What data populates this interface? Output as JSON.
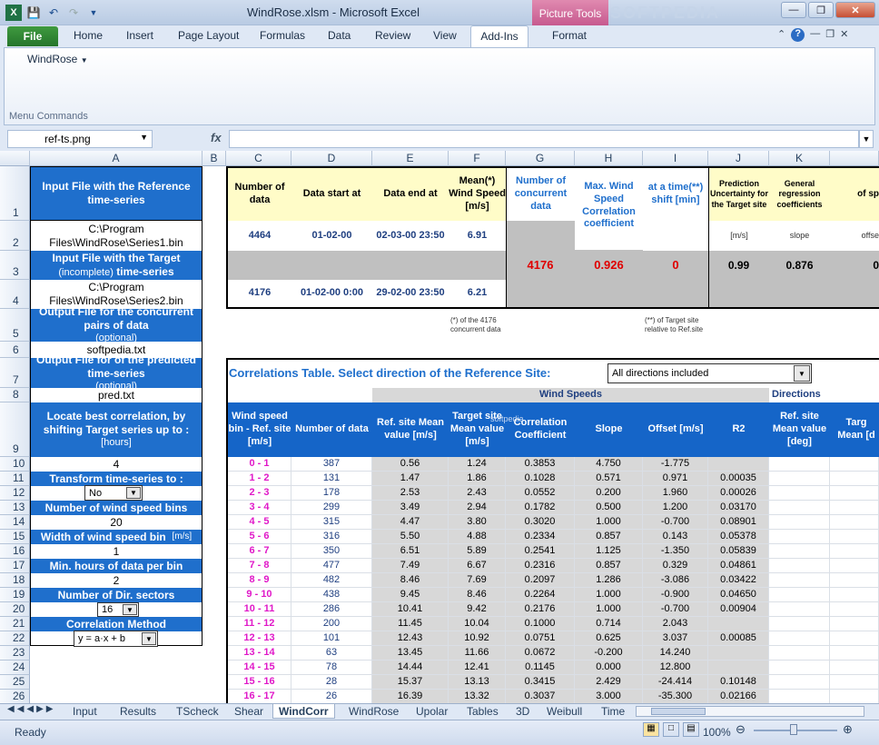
{
  "window": {
    "title": "WindRose.xlsm  -  Microsoft Excel",
    "context_tab": "Picture Tools",
    "watermark": "SOFTPEDIA"
  },
  "ribbon": {
    "file": "File",
    "tabs": [
      "Home",
      "Insert",
      "Page Layout",
      "Formulas",
      "Data",
      "Review",
      "View"
    ],
    "active_tab": "Add-Ins",
    "context_format": "Format",
    "menu_item": "WindRose",
    "group_label": "Menu Commands"
  },
  "formula_bar": {
    "name_box": "ref-ts.png",
    "fx": "fx",
    "content": ""
  },
  "columns": [
    "A",
    "B",
    "C",
    "D",
    "E",
    "F",
    "G",
    "H",
    "I",
    "J",
    "K"
  ],
  "rows": [
    "1",
    "2",
    "3",
    "4",
    "5",
    "6",
    "7",
    "8",
    "9",
    "10",
    "11",
    "12",
    "13",
    "14",
    "15",
    "16",
    "17",
    "18",
    "19",
    "20",
    "21",
    "22",
    "23",
    "24",
    "25",
    "26"
  ],
  "left_panel": {
    "ref_file_label": "Input File with the Reference time-series",
    "ref_file_value": "C:\\Program Files\\WindRose\\Series1.bin",
    "target_label_1": "Input File with the Target",
    "target_label_2": "(incomplete)",
    "target_label_3": "time-series",
    "target_value": "C:\\Program Files\\WindRose\\Series2.bin",
    "output_conc_label": "Output File for the concurrent pairs of data",
    "output_conc_opt": "(optional)",
    "output_conc_value": "softpedia.txt",
    "output_pred_label": "Output File for of the predicted time-series",
    "output_pred_opt": "(optional)",
    "output_pred_value": "pred.txt",
    "locate_label": "Locate best correlation, by shifting Target series up to :",
    "locate_unit": "[hours]",
    "locate_value": "4",
    "transform_label": "Transform time-series to :",
    "transform_value": "No",
    "nbins_label": "Number of wind speed bins",
    "nbins_value": "20",
    "width_label": "Width of wind speed bin",
    "width_unit": "[m/s]",
    "width_value": "1",
    "minhours_label": "Min. hours of data per bin",
    "minhours_value": "2",
    "ndir_label": "Number of Dir. sectors",
    "ndir_value": "16",
    "method_label": "Correlation Method",
    "method_value": "y = a·x + b"
  },
  "summary": {
    "h_ndata": "Number of data",
    "h_start": "Data start at",
    "h_end": "Data end at",
    "h_mean": "Mean(*) Wind Speed [m/s]",
    "h_conc": "Number of concurrent data",
    "h_maxcorr": "Max. Wind Speed Correlation coefficient",
    "h_shift": "at a time(**) shift [min]",
    "h_pred": "Prediction Uncertainty for the Target site",
    "h_gen": "General regression coefficients",
    "h_l": "of sp",
    "unit_ms": "[m/s]",
    "unit_slope": "slope",
    "unit_offs": "offse",
    "ref": {
      "n": "4464",
      "start": "01-02-00",
      "end": "02-03-00 23:50",
      "mean": "6.91"
    },
    "tgt": {
      "n": "4176",
      "start": "01-02-00 0:00",
      "end": "29-02-00 23:50",
      "mean": "6.21"
    },
    "conc": "4176",
    "maxcorr": "0.926",
    "shift": "0",
    "pred": "0.99",
    "slope": "0.876",
    "offset": "0",
    "note1": "(*) of the 4176 concurrent data",
    "note2": "(**) of Target site relative to Ref.site"
  },
  "corr": {
    "title": "Correlations Table.  Select direction of the Reference Site:",
    "direction": "All directions included",
    "grp_speeds": "Wind Speeds",
    "grp_dirs": "Directions",
    "headers": [
      "Wind speed bin - Ref. site [m/s]",
      "Number of data",
      "Ref. site Mean value [m/s]",
      "Target site Mean value [m/s]",
      "Correlation Coefficient",
      "Slope",
      "Offset [m/s]",
      "R2",
      "Ref. site Mean value [deg]",
      "Targ Mean [d"
    ],
    "rows": [
      [
        "0 - 1",
        "387",
        "0.56",
        "1.24",
        "0.3853",
        "4.750",
        "-1.775",
        ""
      ],
      [
        "1 - 2",
        "131",
        "1.47",
        "1.86",
        "0.1028",
        "0.571",
        "0.971",
        "0.00035"
      ],
      [
        "2 - 3",
        "178",
        "2.53",
        "2.43",
        "0.0552",
        "0.200",
        "1.960",
        "0.00026"
      ],
      [
        "3 - 4",
        "299",
        "3.49",
        "2.94",
        "0.1782",
        "0.500",
        "1.200",
        "0.03170"
      ],
      [
        "4 - 5",
        "315",
        "4.47",
        "3.80",
        "0.3020",
        "1.000",
        "-0.700",
        "0.08901"
      ],
      [
        "5 - 6",
        "316",
        "5.50",
        "4.88",
        "0.2334",
        "0.857",
        "0.143",
        "0.05378"
      ],
      [
        "6 - 7",
        "350",
        "6.51",
        "5.89",
        "0.2541",
        "1.125",
        "-1.350",
        "0.05839"
      ],
      [
        "7 - 8",
        "477",
        "7.49",
        "6.67",
        "0.2316",
        "0.857",
        "0.329",
        "0.04861"
      ],
      [
        "8 - 9",
        "482",
        "8.46",
        "7.69",
        "0.2097",
        "1.286",
        "-3.086",
        "0.03422"
      ],
      [
        "9 - 10",
        "438",
        "9.45",
        "8.46",
        "0.2264",
        "1.000",
        "-0.900",
        "0.04650"
      ],
      [
        "10 - 11",
        "286",
        "10.41",
        "9.42",
        "0.2176",
        "1.000",
        "-0.700",
        "0.00904"
      ],
      [
        "11 - 12",
        "200",
        "11.45",
        "10.04",
        "0.1000",
        "0.714",
        "2.043",
        ""
      ],
      [
        "12 - 13",
        "101",
        "12.43",
        "10.92",
        "0.0751",
        "0.625",
        "3.037",
        "0.00085"
      ],
      [
        "13 - 14",
        "63",
        "13.45",
        "11.66",
        "0.0672",
        "-0.200",
        "14.240",
        ""
      ],
      [
        "14 - 15",
        "78",
        "14.44",
        "12.41",
        "0.1145",
        "0.000",
        "12.800",
        ""
      ],
      [
        "15 - 16",
        "28",
        "15.37",
        "13.13",
        "0.3415",
        "2.429",
        "-24.414",
        "0.10148"
      ],
      [
        "16 - 17",
        "26",
        "16.39",
        "13.32",
        "0.3037",
        "3.000",
        "-35.300",
        "0.02166"
      ]
    ]
  },
  "sheets": [
    "Input",
    "Results",
    "TScheck",
    "Shear",
    "WindCorr",
    "WindRose",
    "Upolar",
    "Tables",
    "3D",
    "Weibull",
    "Time"
  ],
  "active_sheet": "WindCorr",
  "status": {
    "ready": "Ready",
    "zoom": "100%"
  }
}
